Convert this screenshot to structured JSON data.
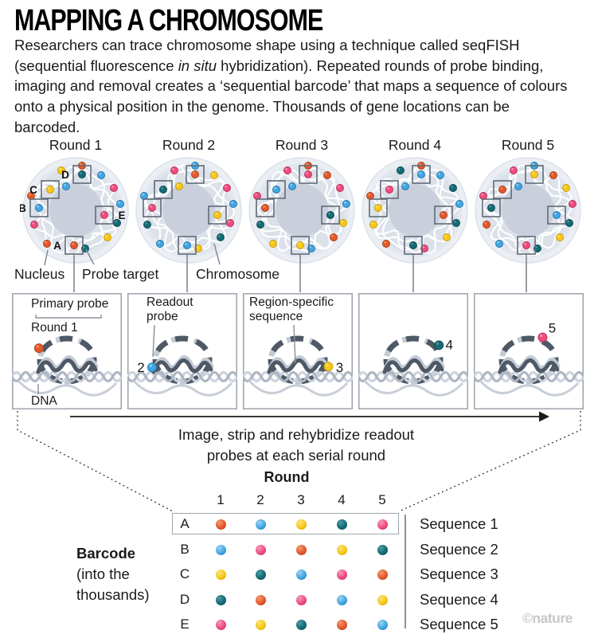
{
  "title": "MAPPING A CHROMOSOME",
  "intro": {
    "part1": "Researchers can trace chromosome shape using a technique called seqFISH (sequential fluorescence ",
    "italic": "in situ",
    "part2": " hybridization). Repeated rounds of probe binding, imaging and removal creates a ‘sequential barcode’ that maps a sequence of colours onto a physical position in the genome. Thousands of gene locations can be barcoded."
  },
  "palette": {
    "orange": {
      "fill": "#E4582A",
      "dark": "#A93D18",
      "light": "#F49A6F"
    },
    "blue": {
      "fill": "#41A6E1",
      "dark": "#1D76AE",
      "light": "#9AD4F2"
    },
    "yellow": {
      "fill": "#F7C818",
      "dark": "#C79A07",
      "light": "#FBE27A"
    },
    "teal": {
      "fill": "#156B74",
      "dark": "#0A454C",
      "light": "#4C9BA3"
    },
    "pink": {
      "fill": "#EE4C7E",
      "dark": "#B72B58",
      "light": "#F79AB9"
    }
  },
  "nucleus_colors": {
    "outer": "#EBEFF4",
    "rim": "#DCE2EA",
    "mid": "#E2E7EF",
    "annulus": "#DBE0E9",
    "center": "#C9D0DB",
    "chromatin": "#FFFFFF",
    "box_stroke": "#606B78"
  },
  "panel_colors": {
    "border": "#9CA3AD",
    "dash_dark": "#4E5965",
    "dash_light": "#C2CAD4",
    "dna1": "#AEB6C3",
    "dna2": "#CDD3DC",
    "wave": "#C8CED8",
    "pointer": "#8A919B",
    "text": "#1a1a1a"
  },
  "rounds": [
    {
      "label": "Round 1",
      "show_letters": true,
      "boxed": {
        "A": "orange",
        "B": "blue",
        "C": "yellow",
        "D": "teal",
        "E": "pink"
      },
      "free": [
        "yellow",
        "orange",
        "blue",
        "pink",
        "blue",
        "teal",
        "yellow",
        "teal",
        "orange",
        "pink",
        "orange",
        "blue"
      ]
    },
    {
      "label": "Round 2",
      "show_letters": false,
      "boxed": {
        "A": "blue",
        "B": "pink",
        "C": "teal",
        "D": "orange",
        "E": "yellow"
      },
      "free": [
        "pink",
        "blue",
        "yellow",
        "pink",
        "blue",
        "pink",
        "teal",
        "yellow",
        "blue",
        "teal",
        "blue",
        "yellow"
      ]
    },
    {
      "label": "Round 3",
      "show_letters": false,
      "boxed": {
        "A": "yellow",
        "B": "orange",
        "C": "blue",
        "D": "pink",
        "E": "teal"
      },
      "free": [
        "pink",
        "orange",
        "orange",
        "pink",
        "blue",
        "yellow",
        "orange",
        "blue",
        "yellow",
        "teal",
        "pink",
        "blue"
      ]
    },
    {
      "label": "Round 4",
      "show_letters": false,
      "boxed": {
        "A": "teal",
        "B": "yellow",
        "C": "pink",
        "D": "blue",
        "E": "orange"
      },
      "free": [
        "teal",
        "orange",
        "blue",
        "teal",
        "blue",
        "teal",
        "yellow",
        "pink",
        "orange",
        "yellow",
        "orange",
        "blue"
      ]
    },
    {
      "label": "Round 5",
      "show_letters": false,
      "boxed": {
        "A": "pink",
        "B": "teal",
        "C": "orange",
        "D": "yellow",
        "E": "blue"
      },
      "free": [
        "pink",
        "blue",
        "orange",
        "yellow",
        "pink",
        "teal",
        "yellow",
        "teal",
        "blue",
        "orange",
        "pink",
        "blue"
      ]
    }
  ],
  "nucleus_labels": {
    "nucleus": "Nucleus",
    "probe_target": "Probe target",
    "chromosome": "Chromosome"
  },
  "panels": [
    {
      "title_lines": [
        "Primary probe"
      ],
      "subtitle": "Round 1",
      "dna_label": "DNA",
      "dot": "orange",
      "number": ""
    },
    {
      "title_lines": [
        "Readout",
        "probe"
      ],
      "dot": "blue",
      "number": "2"
    },
    {
      "title_lines": [
        "Region-specific",
        "sequence"
      ],
      "dot": "yellow",
      "number": "3"
    },
    {
      "title_lines": [],
      "dot": "teal",
      "number": "4"
    },
    {
      "title_lines": [],
      "dot": "pink",
      "number": "5"
    }
  ],
  "arrow_caption": {
    "line1": "Image, strip and rehybridize readout",
    "line2": "probes at each serial round"
  },
  "barcode_table": {
    "header": "Round",
    "columns": [
      "1",
      "2",
      "3",
      "4",
      "5"
    ],
    "rows": [
      {
        "letter": "A",
        "colors": [
          "orange",
          "blue",
          "yellow",
          "teal",
          "pink"
        ],
        "sequence": "Sequence 1"
      },
      {
        "letter": "B",
        "colors": [
          "blue",
          "pink",
          "orange",
          "yellow",
          "teal"
        ],
        "sequence": "Sequence 2"
      },
      {
        "letter": "C",
        "colors": [
          "yellow",
          "teal",
          "blue",
          "pink",
          "orange"
        ],
        "sequence": "Sequence 3"
      },
      {
        "letter": "D",
        "colors": [
          "teal",
          "orange",
          "pink",
          "blue",
          "yellow"
        ],
        "sequence": "Sequence 4"
      },
      {
        "letter": "E",
        "colors": [
          "pink",
          "yellow",
          "teal",
          "orange",
          "blue"
        ],
        "sequence": "Sequence 5"
      }
    ],
    "left_label_bold": "Barcode",
    "left_label_lines": [
      "(into the",
      "thousands)"
    ]
  },
  "credit": "©nature"
}
